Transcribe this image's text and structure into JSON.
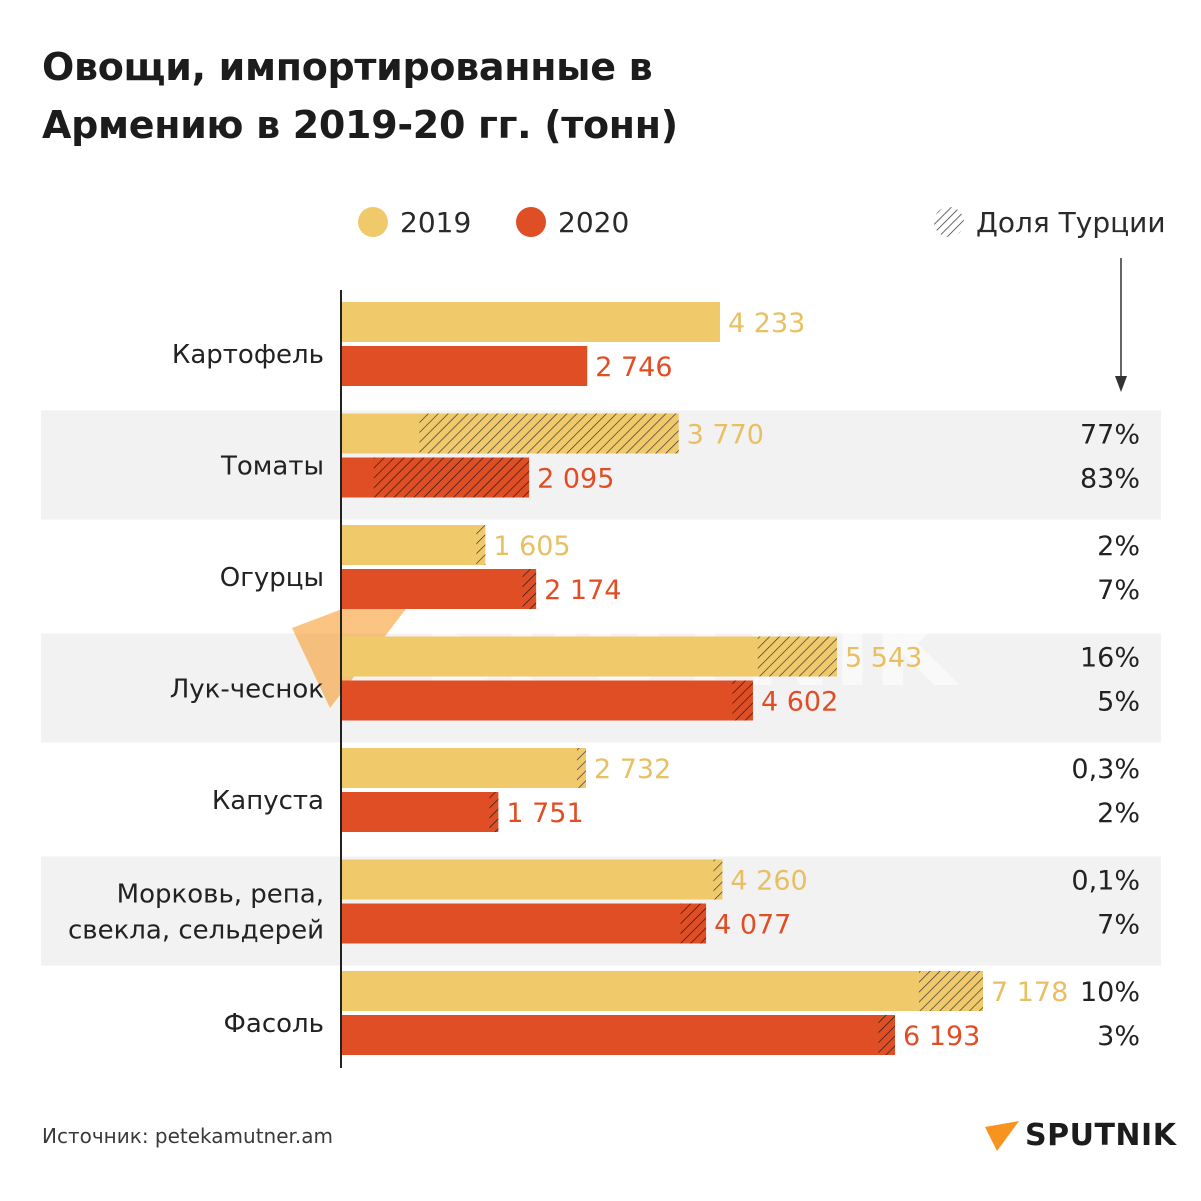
{
  "title_line1": "Овощи, импортированные в",
  "title_line2": "Армению в 2019-20 гг. (тонн)",
  "legend": {
    "y2019": "2019",
    "y2020": "2020",
    "turkey": "Доля Турции"
  },
  "colors": {
    "y2019": "#f0c96a",
    "y2020": "#e04e25",
    "band": "#f2f2f2",
    "axis": "#222222",
    "label2019": "#e8c063",
    "label2020": "#e04e25"
  },
  "source": "Источник: petekamutner.am",
  "brand": "SPUTNIK",
  "watermark": "SPUTNIK",
  "chart_data": {
    "type": "bar",
    "orientation": "horizontal",
    "categories": [
      "Картофель",
      "Томаты",
      "Огурцы",
      "Лук-чеснок",
      "Капуста",
      "Морковь, репа, свекла, сельдерей",
      "Фасоль"
    ],
    "category_lines": [
      [
        "Картофель"
      ],
      [
        "Томаты"
      ],
      [
        "Огурцы"
      ],
      [
        "Лук-чеснок"
      ],
      [
        "Капуста"
      ],
      [
        "Морковь, репа,",
        "свекла, сельдерей"
      ],
      [
        "Фасоль"
      ]
    ],
    "series": [
      {
        "name": "2019",
        "values": [
          4233,
          3770,
          1605,
          5543,
          2732,
          4260,
          7178
        ],
        "labels": [
          "4 233",
          "3 770",
          "1 605",
          "5 543",
          "2 732",
          "4 260",
          "7 178"
        ],
        "turkey_share": [
          null,
          0.77,
          0.02,
          0.16,
          0.003,
          0.001,
          0.1
        ],
        "turkey_share_labels": [
          "",
          "77%",
          "2%",
          "16%",
          "0,3%",
          "0,1%",
          "10%"
        ]
      },
      {
        "name": "2020",
        "values": [
          2746,
          2095,
          2174,
          4602,
          1751,
          4077,
          6193
        ],
        "labels": [
          "2 746",
          "2 095",
          "2 174",
          "4 602",
          "1 751",
          "4 077",
          "6 193"
        ],
        "turkey_share": [
          null,
          0.83,
          0.07,
          0.05,
          0.02,
          0.07,
          0.03
        ],
        "turkey_share_labels": [
          "",
          "83%",
          "7%",
          "5%",
          "2%",
          "7%",
          "3%"
        ]
      }
    ],
    "xlim": [
      0,
      7500
    ],
    "xlabel": "",
    "ylabel": "",
    "grid": false,
    "legend_position": "top",
    "hatched_segment_meaning": "Доля Турции"
  }
}
